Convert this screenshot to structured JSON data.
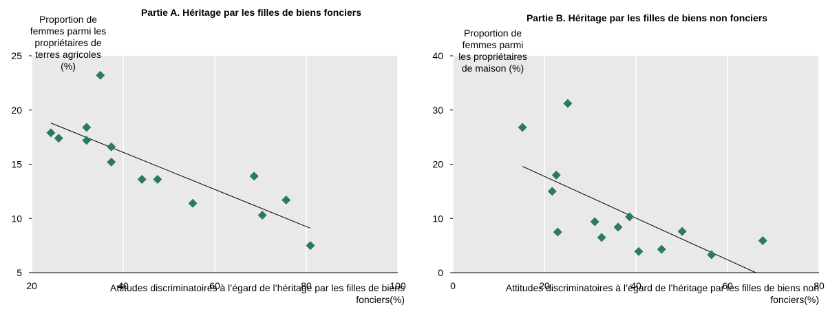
{
  "chart_data": [
    {
      "type": "scatter",
      "title": "Partie A. Héritage par les filles de biens fonciers",
      "y_label": "Proportion de femmes parmi les propriétaires de terres agricoles (%)",
      "x_label": "Attitudes discriminatoires à l’égard de l’héritage par les filles de biens fonciers(%)",
      "color": "#2a7a62",
      "x": [
        24.2,
        25.9,
        35.0,
        32.0,
        32.0,
        37.4,
        37.4,
        44.1,
        47.5,
        55.2,
        68.6,
        70.4,
        75.6,
        80.9
      ],
      "values": [
        17.9,
        17.4,
        23.2,
        18.4,
        17.2,
        16.6,
        15.2,
        13.6,
        13.6,
        11.4,
        13.9,
        10.3,
        11.7,
        7.5
      ],
      "trend_line": {
        "x": [
          24.2,
          80.9
        ],
        "y": [
          18.8,
          9.1
        ]
      },
      "xlim": [
        20,
        100
      ],
      "xticks": [
        20,
        40,
        60,
        80,
        100
      ],
      "ylim": [
        5,
        25
      ],
      "yticks": [
        5,
        10,
        15,
        20,
        25
      ],
      "grid": true
    },
    {
      "type": "scatter",
      "title": "Partie B. Héritage par les filles de biens non fonciers",
      "y_label": "Proportion de femmes parmi les propriétaires de maison (%)",
      "x_label": "Attitudes discriminatoires à l’égard de l’héritage par les filles de biens non fonciers(%)",
      "color": "#2a7a62",
      "x": [
        15.2,
        25.1,
        22.6,
        21.7,
        22.9,
        31.0,
        32.5,
        36.1,
        38.6,
        40.6,
        45.6,
        50.1,
        56.5,
        67.7
      ],
      "values": [
        26.8,
        31.2,
        18.0,
        15.0,
        7.5,
        9.4,
        6.5,
        8.4,
        10.3,
        3.9,
        4.3,
        7.6,
        3.3,
        5.9
      ],
      "trend_line": {
        "x": [
          15.2,
          66.2
        ],
        "y": [
          19.6,
          0
        ]
      },
      "xlim": [
        0,
        80
      ],
      "xticks": [
        0,
        20,
        40,
        60,
        80
      ],
      "ylim": [
        0,
        40
      ],
      "yticks": [
        0,
        10,
        20,
        30,
        40
      ],
      "grid": true
    }
  ]
}
